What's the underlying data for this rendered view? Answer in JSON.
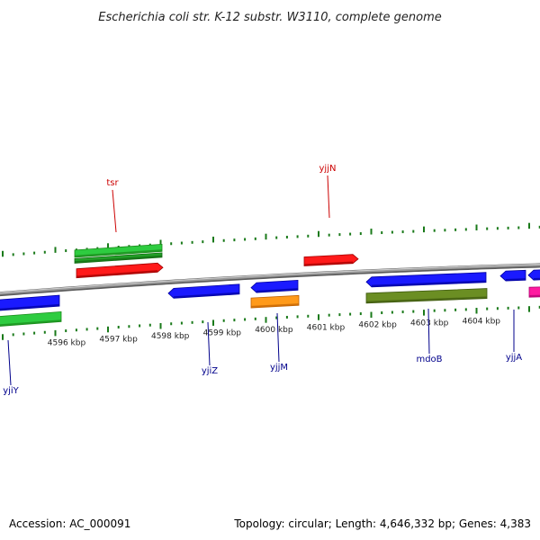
{
  "header": {
    "title": "Escherichia coli str. K-12 substr. W3110, complete genome"
  },
  "footer": {
    "accession": "Accession: AC_000091",
    "summary": "Topology: circular; Length: 4,646,332 bp; Genes: 4,383"
  },
  "colors": {
    "backbone": "#8a8a8a",
    "tick": "#1a7a1a",
    "label_forward": "#cc0000",
    "label_reverse": "#00008b"
  },
  "scale": {
    "labels": [
      {
        "kbp": 4596,
        "text": "4596 kbp"
      },
      {
        "kbp": 4597,
        "text": "4597 kbp"
      },
      {
        "kbp": 4598,
        "text": "4598 kbp"
      },
      {
        "kbp": 4599,
        "text": "4599 kbp"
      },
      {
        "kbp": 4600,
        "text": "4600 kbp"
      },
      {
        "kbp": 4601,
        "text": "4601 kbp"
      },
      {
        "kbp": 4602,
        "text": "4602 kbp"
      },
      {
        "kbp": 4603,
        "text": "4603 kbp"
      },
      {
        "kbp": 4604,
        "text": "4604 kbp"
      }
    ]
  },
  "features": [
    {
      "id": "tsr-gene",
      "color": "#2ecc40",
      "dark": "#1a8a1a"
    },
    {
      "id": "tsr-gene-2",
      "color": "#23a028",
      "dark": "#146b14"
    },
    {
      "id": "tsr-cds",
      "color": "#ff1a1a",
      "dark": "#a00000"
    },
    {
      "id": "yjjN-cds",
      "color": "#ff1a1a",
      "dark": "#a00000"
    },
    {
      "id": "yjiY-cds",
      "color": "#1a1aff",
      "dark": "#0000a0"
    },
    {
      "id": "yjiY-gene",
      "color": "#2ecc40",
      "dark": "#1a8a1a"
    },
    {
      "id": "yjiZ-cds",
      "color": "#1a1aff",
      "dark": "#0000a0"
    },
    {
      "id": "yjjM-cds",
      "color": "#1a1aff",
      "dark": "#0000a0"
    },
    {
      "id": "yjjM-rna",
      "color": "#ff9a1a",
      "dark": "#c06000"
    },
    {
      "id": "mdoB-cds",
      "color": "#1a1aff",
      "dark": "#0000a0"
    },
    {
      "id": "mdoB-gene",
      "color": "#6b8e23",
      "dark": "#3f5a10"
    },
    {
      "id": "yjjA-cds",
      "color": "#1a1aff",
      "dark": "#0000a0"
    },
    {
      "id": "edge-cds",
      "color": "#1a1aff",
      "dark": "#0000a0"
    },
    {
      "id": "edge-pink",
      "color": "#ff1aa0",
      "dark": "#b00070"
    }
  ],
  "labels": [
    {
      "id": "tsr",
      "text": "tsr",
      "strand": "forward"
    },
    {
      "id": "yjjN",
      "text": "yjjN",
      "strand": "forward"
    },
    {
      "id": "yjiY",
      "text": "yjiY",
      "strand": "reverse"
    },
    {
      "id": "yjiZ",
      "text": "yjiZ",
      "strand": "reverse"
    },
    {
      "id": "yjjM",
      "text": "yjjM",
      "strand": "reverse"
    },
    {
      "id": "mdoB",
      "text": "mdoB",
      "strand": "reverse"
    },
    {
      "id": "yjjA",
      "text": "yjjA",
      "strand": "reverse"
    }
  ]
}
